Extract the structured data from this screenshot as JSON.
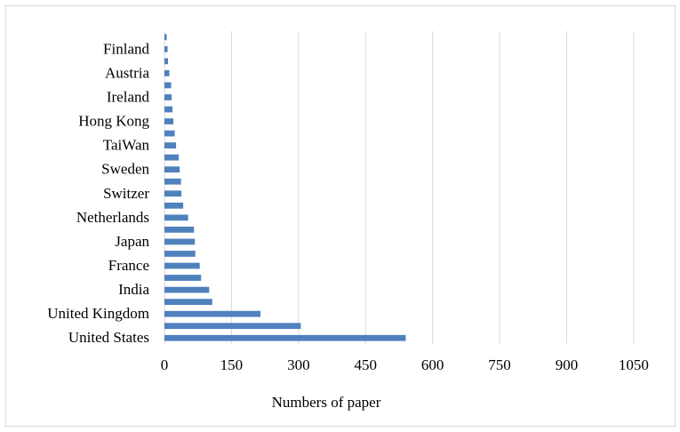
{
  "chart_data": {
    "type": "bar",
    "orientation": "horizontal",
    "categories": [
      "United States",
      "",
      "United Kingdom",
      "",
      "India",
      "",
      "France",
      "",
      "Japan",
      "",
      "Netherlands",
      "",
      "Switzer",
      "",
      "Sweden",
      "",
      "TaiWan",
      "",
      "Hong Kong",
      "",
      "Ireland",
      "",
      "Austria",
      "",
      "Finland",
      ""
    ],
    "values": [
      540,
      305,
      215,
      107,
      100,
      82,
      79,
      69,
      68,
      66,
      53,
      42,
      38,
      37,
      34,
      32,
      26,
      23,
      20,
      18,
      16,
      15,
      11,
      8,
      7,
      5
    ],
    "xlabel": "Numbers of paper",
    "ylabel": "",
    "xlim": [
      0,
      1100
    ],
    "xticks": [
      0,
      150,
      300,
      450,
      600,
      750,
      900,
      1050
    ],
    "grid": "vertical",
    "legend": "none",
    "bar_color": "#4f81bd",
    "grid_color": "#d9d9d9"
  }
}
